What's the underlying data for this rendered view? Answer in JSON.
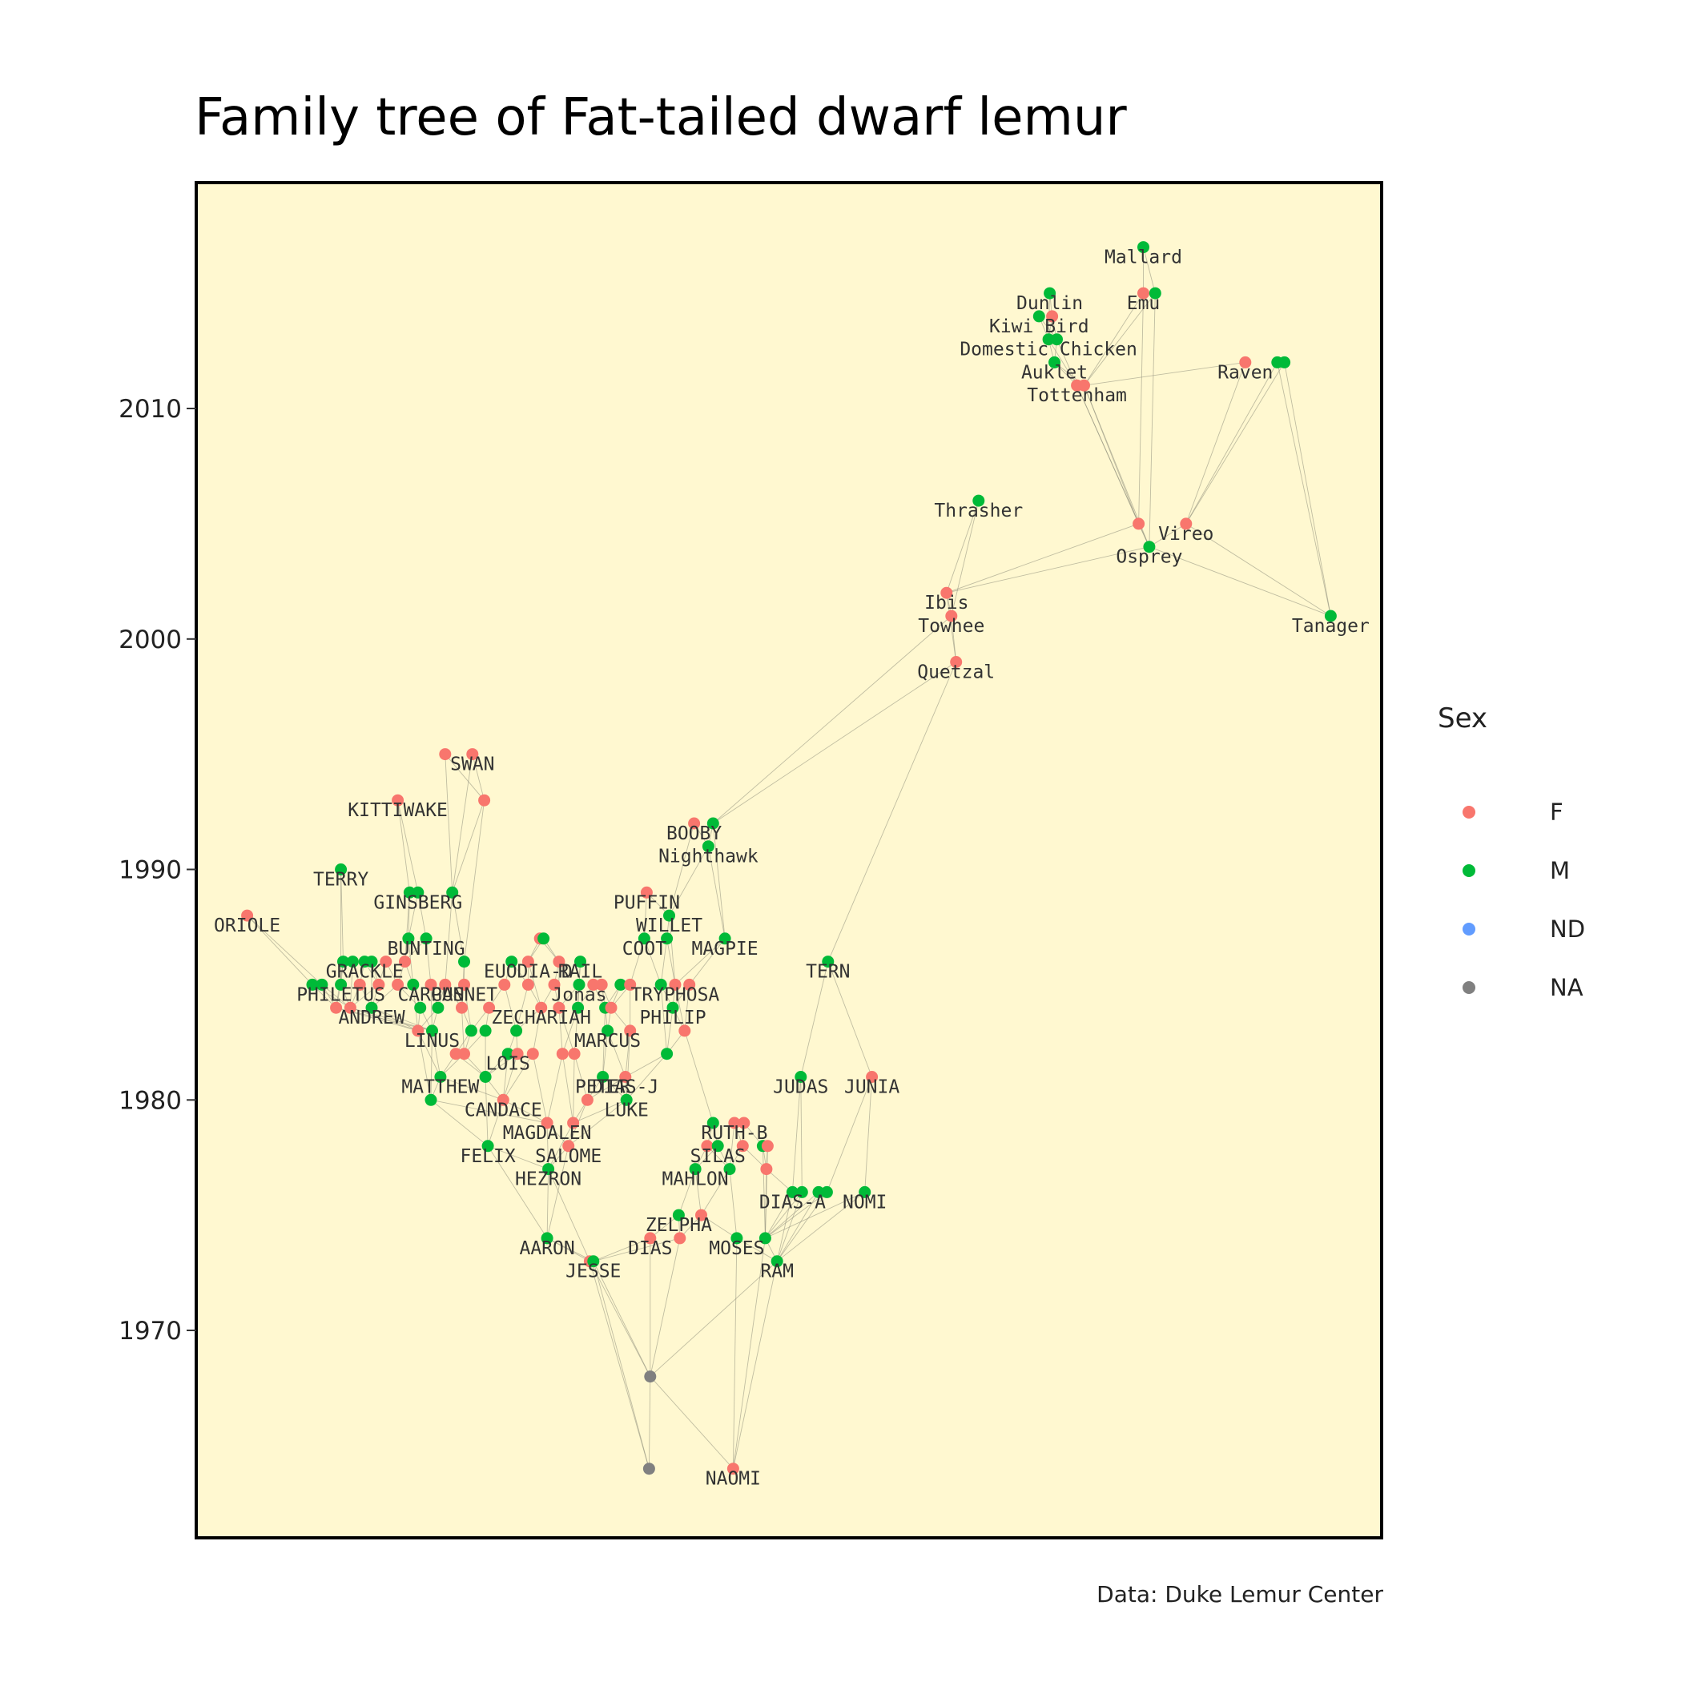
{
  "chart_data": {
    "type": "scatter",
    "title": "Family tree of Fat-tailed dwarf lemur",
    "caption": "Data: Duke Lemur Center",
    "ylabel": "",
    "xlabel": "",
    "ylim": [
      1961,
      2019.8
    ],
    "xlim": [
      0,
      100
    ],
    "y_ticks": [
      1970,
      1980,
      1990,
      2000,
      2010
    ],
    "grid": false,
    "legend": {
      "title": "Sex",
      "placement": "right",
      "entries": [
        {
          "label": "F",
          "color": "#F8766D"
        },
        {
          "label": "M",
          "color": "#00BA38"
        },
        {
          "label": "ND",
          "color": "#619CFF"
        },
        {
          "label": "NA",
          "color": "#808080"
        }
      ]
    },
    "colors": {
      "panel_bg": "#FFF8D0",
      "edge": "#8c8c7a",
      "F": "#F8766D",
      "M": "#00BA38",
      "ND": "#619CFF",
      "NA": "#808080"
    },
    "nodes": [
      {
        "x": 4.3,
        "y": 1988,
        "sex": "F",
        "label": "ORIOLE"
      },
      {
        "x": 12.2,
        "y": 1990,
        "sex": "M",
        "label": "TERRY"
      },
      {
        "x": 17.0,
        "y": 1993,
        "sex": "F",
        "label": "KITTIWAKE"
      },
      {
        "x": 21.0,
        "y": 1995,
        "sex": "F",
        "label": ""
      },
      {
        "x": 23.3,
        "y": 1995,
        "sex": "F",
        "label": "SWAN"
      },
      {
        "x": 24.3,
        "y": 1993,
        "sex": "F",
        "label": ""
      },
      {
        "x": 18.0,
        "y": 1989,
        "sex": "M",
        "label": ""
      },
      {
        "x": 18.7,
        "y": 1989,
        "sex": "M",
        "label": "GINSBERG"
      },
      {
        "x": 21.6,
        "y": 1989,
        "sex": "M",
        "label": ""
      },
      {
        "x": 17.9,
        "y": 1987,
        "sex": "M",
        "label": ""
      },
      {
        "x": 19.4,
        "y": 1987,
        "sex": "M",
        "label": "BUNTING"
      },
      {
        "x": 22.6,
        "y": 1986,
        "sex": "M",
        "label": ""
      },
      {
        "x": 12.4,
        "y": 1986,
        "sex": "M",
        "label": ""
      },
      {
        "x": 13.2,
        "y": 1986,
        "sex": "M",
        "label": ""
      },
      {
        "x": 14.2,
        "y": 1986,
        "sex": "M",
        "label": "GRACKLE"
      },
      {
        "x": 14.8,
        "y": 1986,
        "sex": "M",
        "label": ""
      },
      {
        "x": 16.0,
        "y": 1986,
        "sex": "F",
        "label": ""
      },
      {
        "x": 17.6,
        "y": 1986,
        "sex": "F",
        "label": ""
      },
      {
        "x": 9.8,
        "y": 1985,
        "sex": "M",
        "label": ""
      },
      {
        "x": 10.6,
        "y": 1985,
        "sex": "M",
        "label": ""
      },
      {
        "x": 12.2,
        "y": 1985,
        "sex": "M",
        "label": "PHILETUS"
      },
      {
        "x": 13.8,
        "y": 1985,
        "sex": "F",
        "label": ""
      },
      {
        "x": 15.4,
        "y": 1985,
        "sex": "F",
        "label": ""
      },
      {
        "x": 17.0,
        "y": 1985,
        "sex": "F",
        "label": ""
      },
      {
        "x": 18.3,
        "y": 1985,
        "sex": "M",
        "label": ""
      },
      {
        "x": 19.8,
        "y": 1985,
        "sex": "F",
        "label": "CARPUS"
      },
      {
        "x": 21.0,
        "y": 1985,
        "sex": "F",
        "label": ""
      },
      {
        "x": 22.6,
        "y": 1985,
        "sex": "F",
        "label": "GANNET"
      },
      {
        "x": 11.8,
        "y": 1984,
        "sex": "F",
        "label": ""
      },
      {
        "x": 13.0,
        "y": 1984,
        "sex": "F",
        "label": ""
      },
      {
        "x": 14.8,
        "y": 1984,
        "sex": "M",
        "label": "ANDREW"
      },
      {
        "x": 18.9,
        "y": 1984,
        "sex": "M",
        "label": ""
      },
      {
        "x": 20.4,
        "y": 1984,
        "sex": "M",
        "label": ""
      },
      {
        "x": 22.4,
        "y": 1984,
        "sex": "F",
        "label": ""
      },
      {
        "x": 24.7,
        "y": 1984,
        "sex": "F",
        "label": ""
      },
      {
        "x": 18.7,
        "y": 1983,
        "sex": "F",
        "label": ""
      },
      {
        "x": 19.9,
        "y": 1983,
        "sex": "M",
        "label": "LINUS"
      },
      {
        "x": 23.2,
        "y": 1983,
        "sex": "M",
        "label": ""
      },
      {
        "x": 24.4,
        "y": 1983,
        "sex": "M",
        "label": ""
      },
      {
        "x": 21.9,
        "y": 1982,
        "sex": "F",
        "label": ""
      },
      {
        "x": 22.6,
        "y": 1982,
        "sex": "F",
        "label": ""
      },
      {
        "x": 26.3,
        "y": 1982,
        "sex": "M",
        "label": "LOIS"
      },
      {
        "x": 20.6,
        "y": 1981,
        "sex": "M",
        "label": "MATTHEW"
      },
      {
        "x": 24.4,
        "y": 1981,
        "sex": "M",
        "label": ""
      },
      {
        "x": 19.8,
        "y": 1980,
        "sex": "M",
        "label": ""
      },
      {
        "x": 25.9,
        "y": 1980,
        "sex": "F",
        "label": "CANDACE"
      },
      {
        "x": 29.0,
        "y": 1987,
        "sex": "F",
        "label": ""
      },
      {
        "x": 29.3,
        "y": 1987,
        "sex": "M",
        "label": ""
      },
      {
        "x": 28.0,
        "y": 1986,
        "sex": "F",
        "label": "EUODIA-D"
      },
      {
        "x": 30.6,
        "y": 1986,
        "sex": "F",
        "label": ""
      },
      {
        "x": 32.4,
        "y": 1986,
        "sex": "M",
        "label": "RAIL"
      },
      {
        "x": 26.6,
        "y": 1986,
        "sex": "M",
        "label": ""
      },
      {
        "x": 26.0,
        "y": 1985,
        "sex": "F",
        "label": ""
      },
      {
        "x": 28.0,
        "y": 1985,
        "sex": "F",
        "label": ""
      },
      {
        "x": 30.2,
        "y": 1985,
        "sex": "F",
        "label": ""
      },
      {
        "x": 32.3,
        "y": 1985,
        "sex": "M",
        "label": "Jonas"
      },
      {
        "x": 33.5,
        "y": 1985,
        "sex": "F",
        "label": ""
      },
      {
        "x": 34.2,
        "y": 1985,
        "sex": "F",
        "label": ""
      },
      {
        "x": 35.8,
        "y": 1985,
        "sex": "M",
        "label": ""
      },
      {
        "x": 36.6,
        "y": 1985,
        "sex": "F",
        "label": ""
      },
      {
        "x": 29.1,
        "y": 1984,
        "sex": "F",
        "label": "ZECHARIAH"
      },
      {
        "x": 30.6,
        "y": 1984,
        "sex": "F",
        "label": ""
      },
      {
        "x": 32.2,
        "y": 1984,
        "sex": "M",
        "label": ""
      },
      {
        "x": 34.5,
        "y": 1984,
        "sex": "M",
        "label": ""
      },
      {
        "x": 35.0,
        "y": 1984,
        "sex": "F",
        "label": ""
      },
      {
        "x": 27.0,
        "y": 1983,
        "sex": "M",
        "label": ""
      },
      {
        "x": 34.7,
        "y": 1983,
        "sex": "M",
        "label": "MARCUS"
      },
      {
        "x": 36.6,
        "y": 1983,
        "sex": "F",
        "label": ""
      },
      {
        "x": 27.1,
        "y": 1982,
        "sex": "F",
        "label": ""
      },
      {
        "x": 28.4,
        "y": 1982,
        "sex": "F",
        "label": ""
      },
      {
        "x": 30.9,
        "y": 1982,
        "sex": "F",
        "label": ""
      },
      {
        "x": 31.9,
        "y": 1982,
        "sex": "F",
        "label": ""
      },
      {
        "x": 36.2,
        "y": 1981,
        "sex": "F",
        "label": "DIAS-J"
      },
      {
        "x": 34.3,
        "y": 1981,
        "sex": "M",
        "label": "PETER"
      },
      {
        "x": 33.0,
        "y": 1980,
        "sex": "F",
        "label": ""
      },
      {
        "x": 36.3,
        "y": 1980,
        "sex": "M",
        "label": "LUKE"
      },
      {
        "x": 29.6,
        "y": 1979,
        "sex": "F",
        "label": "MAGDALEN"
      },
      {
        "x": 31.8,
        "y": 1979,
        "sex": "F",
        "label": ""
      },
      {
        "x": 31.4,
        "y": 1978,
        "sex": "F",
        "label": "SALOME"
      },
      {
        "x": 24.6,
        "y": 1978,
        "sex": "M",
        "label": "FELIX"
      },
      {
        "x": 29.7,
        "y": 1977,
        "sex": "M",
        "label": "HEZRON"
      },
      {
        "x": 29.6,
        "y": 1974,
        "sex": "M",
        "label": "AARON"
      },
      {
        "x": 33.2,
        "y": 1973,
        "sex": "F",
        "label": ""
      },
      {
        "x": 33.5,
        "y": 1973,
        "sex": "M",
        "label": "JESSE"
      },
      {
        "x": 38.3,
        "y": 1974,
        "sex": "F",
        "label": "DIAS"
      },
      {
        "x": 38.0,
        "y": 1989,
        "sex": "F",
        "label": "PUFFIN"
      },
      {
        "x": 39.9,
        "y": 1988,
        "sex": "M",
        "label": "WILLET"
      },
      {
        "x": 37.8,
        "y": 1987,
        "sex": "M",
        "label": "COOT"
      },
      {
        "x": 39.7,
        "y": 1987,
        "sex": "M",
        "label": ""
      },
      {
        "x": 44.6,
        "y": 1987,
        "sex": "M",
        "label": "MAGPIE"
      },
      {
        "x": 39.2,
        "y": 1985,
        "sex": "M",
        "label": ""
      },
      {
        "x": 40.4,
        "y": 1985,
        "sex": "F",
        "label": "TRYPHOSA"
      },
      {
        "x": 41.6,
        "y": 1985,
        "sex": "F",
        "label": ""
      },
      {
        "x": 40.2,
        "y": 1984,
        "sex": "M",
        "label": "PHILIP"
      },
      {
        "x": 41.2,
        "y": 1983,
        "sex": "F",
        "label": ""
      },
      {
        "x": 39.7,
        "y": 1982,
        "sex": "M",
        "label": ""
      },
      {
        "x": 42.0,
        "y": 1992,
        "sex": "F",
        "label": "BOOBY"
      },
      {
        "x": 43.6,
        "y": 1992,
        "sex": "M",
        "label": ""
      },
      {
        "x": 43.2,
        "y": 1991,
        "sex": "M",
        "label": "Nighthawk"
      },
      {
        "x": 53.3,
        "y": 1986,
        "sex": "M",
        "label": "TERN"
      },
      {
        "x": 51.0,
        "y": 1981,
        "sex": "M",
        "label": "JUDAS"
      },
      {
        "x": 57.0,
        "y": 1981,
        "sex": "F",
        "label": "JUNIA"
      },
      {
        "x": 43.6,
        "y": 1979,
        "sex": "M",
        "label": ""
      },
      {
        "x": 45.4,
        "y": 1979,
        "sex": "F",
        "label": "RUTH-B"
      },
      {
        "x": 46.2,
        "y": 1979,
        "sex": "F",
        "label": ""
      },
      {
        "x": 43.1,
        "y": 1978,
        "sex": "F",
        "label": ""
      },
      {
        "x": 44.0,
        "y": 1978,
        "sex": "M",
        "label": "SILAS"
      },
      {
        "x": 46.1,
        "y": 1978,
        "sex": "F",
        "label": ""
      },
      {
        "x": 47.8,
        "y": 1978,
        "sex": "M",
        "label": ""
      },
      {
        "x": 48.2,
        "y": 1978,
        "sex": "F",
        "label": ""
      },
      {
        "x": 42.1,
        "y": 1977,
        "sex": "M",
        "label": "MAHLON"
      },
      {
        "x": 45.0,
        "y": 1977,
        "sex": "M",
        "label": ""
      },
      {
        "x": 48.1,
        "y": 1977,
        "sex": "F",
        "label": ""
      },
      {
        "x": 50.3,
        "y": 1976,
        "sex": "M",
        "label": "DIAS-A"
      },
      {
        "x": 51.1,
        "y": 1976,
        "sex": "M",
        "label": ""
      },
      {
        "x": 52.5,
        "y": 1976,
        "sex": "M",
        "label": ""
      },
      {
        "x": 53.2,
        "y": 1976,
        "sex": "M",
        "label": ""
      },
      {
        "x": 56.4,
        "y": 1976,
        "sex": "M",
        "label": "NOMI"
      },
      {
        "x": 40.7,
        "y": 1975,
        "sex": "M",
        "label": "ZELPHA"
      },
      {
        "x": 42.6,
        "y": 1975,
        "sex": "F",
        "label": ""
      },
      {
        "x": 40.8,
        "y": 1974,
        "sex": "F",
        "label": ""
      },
      {
        "x": 45.6,
        "y": 1974,
        "sex": "M",
        "label": "MOSES"
      },
      {
        "x": 48.0,
        "y": 1974,
        "sex": "M",
        "label": ""
      },
      {
        "x": 49.0,
        "y": 1973,
        "sex": "M",
        "label": "RAM"
      },
      {
        "x": 38.3,
        "y": 1968,
        "sex": "NA",
        "label": ""
      },
      {
        "x": 38.2,
        "y": 1964,
        "sex": "NA",
        "label": ""
      },
      {
        "x": 45.3,
        "y": 1964,
        "sex": "F",
        "label": "NAOMI"
      },
      {
        "x": 79.9,
        "y": 2017,
        "sex": "M",
        "label": "Mallard"
      },
      {
        "x": 72.0,
        "y": 2015,
        "sex": "M",
        "label": "Dunlin"
      },
      {
        "x": 79.9,
        "y": 2015,
        "sex": "F",
        "label": "Emu"
      },
      {
        "x": 80.9,
        "y": 2015,
        "sex": "M",
        "label": ""
      },
      {
        "x": 71.1,
        "y": 2014,
        "sex": "M",
        "label": "Kiwi Bird"
      },
      {
        "x": 72.2,
        "y": 2014,
        "sex": "F",
        "label": ""
      },
      {
        "x": 71.9,
        "y": 2013,
        "sex": "M",
        "label": "Domestic Chicken"
      },
      {
        "x": 72.6,
        "y": 2013,
        "sex": "M",
        "label": ""
      },
      {
        "x": 72.4,
        "y": 2012,
        "sex": "M",
        "label": "Auklet"
      },
      {
        "x": 74.3,
        "y": 2011,
        "sex": "F",
        "label": "Tottenham"
      },
      {
        "x": 74.9,
        "y": 2011,
        "sex": "F",
        "label": ""
      },
      {
        "x": 88.5,
        "y": 2012,
        "sex": "F",
        "label": "Raven"
      },
      {
        "x": 91.2,
        "y": 2012,
        "sex": "M",
        "label": ""
      },
      {
        "x": 91.8,
        "y": 2012,
        "sex": "M",
        "label": ""
      },
      {
        "x": 66.0,
        "y": 2006,
        "sex": "M",
        "label": "Thrasher"
      },
      {
        "x": 79.5,
        "y": 2005,
        "sex": "F",
        "label": ""
      },
      {
        "x": 83.5,
        "y": 2005,
        "sex": "F",
        "label": "Vireo"
      },
      {
        "x": 80.4,
        "y": 2004,
        "sex": "M",
        "label": "Osprey"
      },
      {
        "x": 63.3,
        "y": 2002,
        "sex": "F",
        "label": "Ibis"
      },
      {
        "x": 63.7,
        "y": 2001,
        "sex": "F",
        "label": "Towhee"
      },
      {
        "x": 95.7,
        "y": 2001,
        "sex": "M",
        "label": "Tanager"
      },
      {
        "x": 64.1,
        "y": 1999,
        "sex": "F",
        "label": "Quetzal"
      }
    ]
  }
}
